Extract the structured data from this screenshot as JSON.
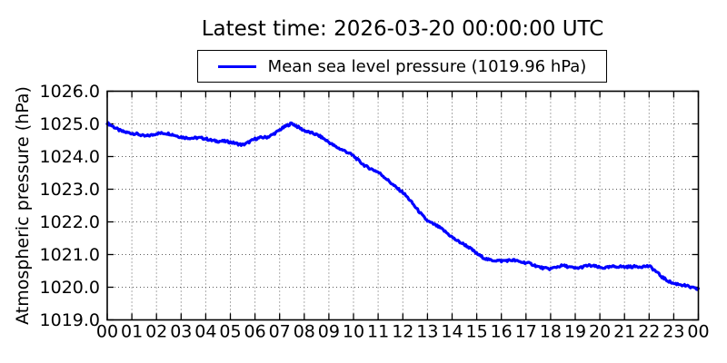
{
  "figure": {
    "title": "Latest time: 2026-03-20 00:00:00 UTC"
  },
  "legend": {
    "label": "Mean sea level pressure (1019.96 hPa)",
    "line_color": "#0000ff"
  },
  "chart_data": {
    "type": "line",
    "title": "Latest time: 2026-03-20 00:00:00 UTC",
    "xlabel": "",
    "ylabel": "Atmospheric pressure (hPa)",
    "xlim": [
      0,
      24
    ],
    "ylim": [
      1019.0,
      1026.0
    ],
    "grid": true,
    "grid_style": "dotted",
    "legend_position": "top-center",
    "latest_value_hPa": 1019.96,
    "x_tick_labels": [
      "00",
      "01",
      "02",
      "03",
      "04",
      "05",
      "06",
      "07",
      "08",
      "09",
      "10",
      "11",
      "12",
      "13",
      "14",
      "15",
      "16",
      "17",
      "18",
      "19",
      "20",
      "21",
      "22",
      "23",
      "00"
    ],
    "y_ticks": [
      1019.0,
      1020.0,
      1021.0,
      1022.0,
      1023.0,
      1024.0,
      1025.0,
      1026.0
    ],
    "y_tick_labels": [
      "1019.0",
      "1020.0",
      "1021.0",
      "1022.0",
      "1023.0",
      "1024.0",
      "1025.0",
      "1026.0"
    ],
    "x": [
      0,
      0.5,
      1,
      1.5,
      2,
      2.5,
      3,
      3.5,
      4,
      4.5,
      5,
      5.5,
      6,
      6.5,
      7,
      7.5,
      8,
      8.5,
      9,
      9.5,
      10,
      10.5,
      11,
      11.5,
      12,
      12.5,
      13,
      13.5,
      14,
      14.5,
      15,
      15.5,
      16,
      16.5,
      17,
      17.5,
      18,
      18.5,
      19,
      19.5,
      20,
      20.5,
      21,
      21.5,
      22,
      22.5,
      23,
      23.5,
      24
    ],
    "series": [
      {
        "name": "Mean sea level pressure (1019.96 hPa)",
        "color": "#0000ff",
        "values": [
          1025.0,
          1024.82,
          1024.7,
          1024.62,
          1024.72,
          1024.68,
          1024.62,
          1024.55,
          1024.55,
          1024.48,
          1024.42,
          1024.38,
          1024.52,
          1024.6,
          1024.82,
          1025.0,
          1024.82,
          1024.65,
          1024.45,
          1024.22,
          1024.0,
          1023.72,
          1023.5,
          1023.22,
          1022.9,
          1022.45,
          1022.05,
          1021.8,
          1021.55,
          1021.3,
          1021.02,
          1020.85,
          1020.78,
          1020.85,
          1020.74,
          1020.62,
          1020.58,
          1020.64,
          1020.6,
          1020.65,
          1020.6,
          1020.64,
          1020.6,
          1020.66,
          1020.63,
          1020.33,
          1020.12,
          1020.02,
          1019.96
        ]
      }
    ]
  }
}
